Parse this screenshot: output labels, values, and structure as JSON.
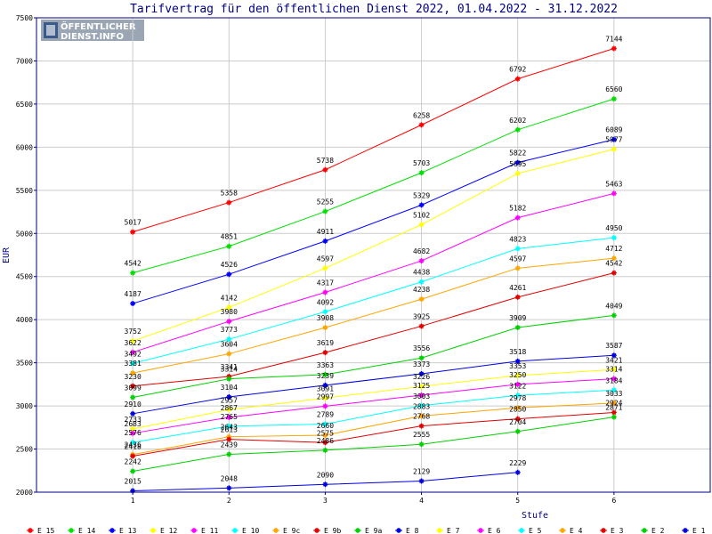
{
  "chart_data": {
    "type": "line",
    "title": "Tarifvertrag für den öffentlichen Dienst 2022, 01.04.2022 - 31.12.2022",
    "xlabel": "Stufe",
    "ylabel": "EUR",
    "x": [
      1,
      2,
      3,
      4,
      5,
      6
    ],
    "xlim": [
      0,
      7
    ],
    "ylim": [
      2000,
      7500
    ],
    "yticks": [
      2000,
      2500,
      3000,
      3500,
      4000,
      4500,
      5000,
      5500,
      6000,
      6500,
      7000,
      7500
    ],
    "grid": true,
    "legend_position": "bottom",
    "series": [
      {
        "name": "E_15",
        "color": "#ff0000",
        "values": [
          5017,
          5358,
          5738,
          6258,
          6792,
          7144
        ]
      },
      {
        "name": "E_14",
        "color": "#00e000",
        "values": [
          4542,
          4851,
          5255,
          5703,
          6202,
          6560
        ]
      },
      {
        "name": "E_13",
        "color": "#0000ff",
        "values": [
          4187,
          4526,
          4911,
          5329,
          5822,
          6089
        ]
      },
      {
        "name": "E_12",
        "color": "#ffff00",
        "values": [
          3752,
          4142,
          4597,
          5102,
          5695,
          5977
        ]
      },
      {
        "name": "E_11",
        "color": "#ff00ff",
        "values": [
          3622,
          3980,
          4317,
          4682,
          5182,
          5463
        ]
      },
      {
        "name": "E_10",
        "color": "#00ffff",
        "values": [
          3492,
          3773,
          4092,
          4438,
          4823,
          4950
        ]
      },
      {
        "name": "E_9c",
        "color": "#ffa500",
        "values": [
          3381,
          3604,
          3908,
          4238,
          4597,
          4712
        ]
      },
      {
        "name": "E_9b",
        "color": "#e00000",
        "values": [
          3230,
          3341,
          3619,
          3925,
          4261,
          4542
        ]
      },
      {
        "name": "E_9a",
        "color": "#00d000",
        "values": [
          3099,
          3314,
          3363,
          3556,
          3909,
          4049
        ]
      },
      {
        "name": "E_8",
        "color": "#0000e0",
        "values": [
          2910,
          3104,
          3239,
          3373,
          3518,
          3587
        ]
      },
      {
        "name": "E_7",
        "color": "#ffff00",
        "values": [
          2733,
          2957,
          3091,
          3226,
          3353,
          3421
        ]
      },
      {
        "name": "E_6",
        "color": "#ff00ff",
        "values": [
          2683,
          2867,
          2997,
          3125,
          3250,
          3314
        ]
      },
      {
        "name": "E_5",
        "color": "#00ffff",
        "values": [
          2576,
          2765,
          2789,
          3003,
          3122,
          3184
        ]
      },
      {
        "name": "E_4",
        "color": "#ffa500",
        "values": [
          2436,
          2643,
          2660,
          2883,
          2978,
          3033
        ]
      },
      {
        "name": "E_3",
        "color": "#e00000",
        "values": [
          2418,
          2613,
          2575,
          2768,
          2850,
          2924
        ]
      },
      {
        "name": "E_2",
        "color": "#00d000",
        "values": [
          2242,
          2439,
          2486,
          2555,
          2704,
          2871
        ]
      },
      {
        "name": "E_1",
        "color": "#0000e0",
        "values": [
          2015,
          2048,
          2090,
          2129,
          2229,
          null
        ]
      }
    ]
  },
  "logo": {
    "line1": "ÖFFENTLICHER",
    "line2": "DIENST.INFO"
  }
}
